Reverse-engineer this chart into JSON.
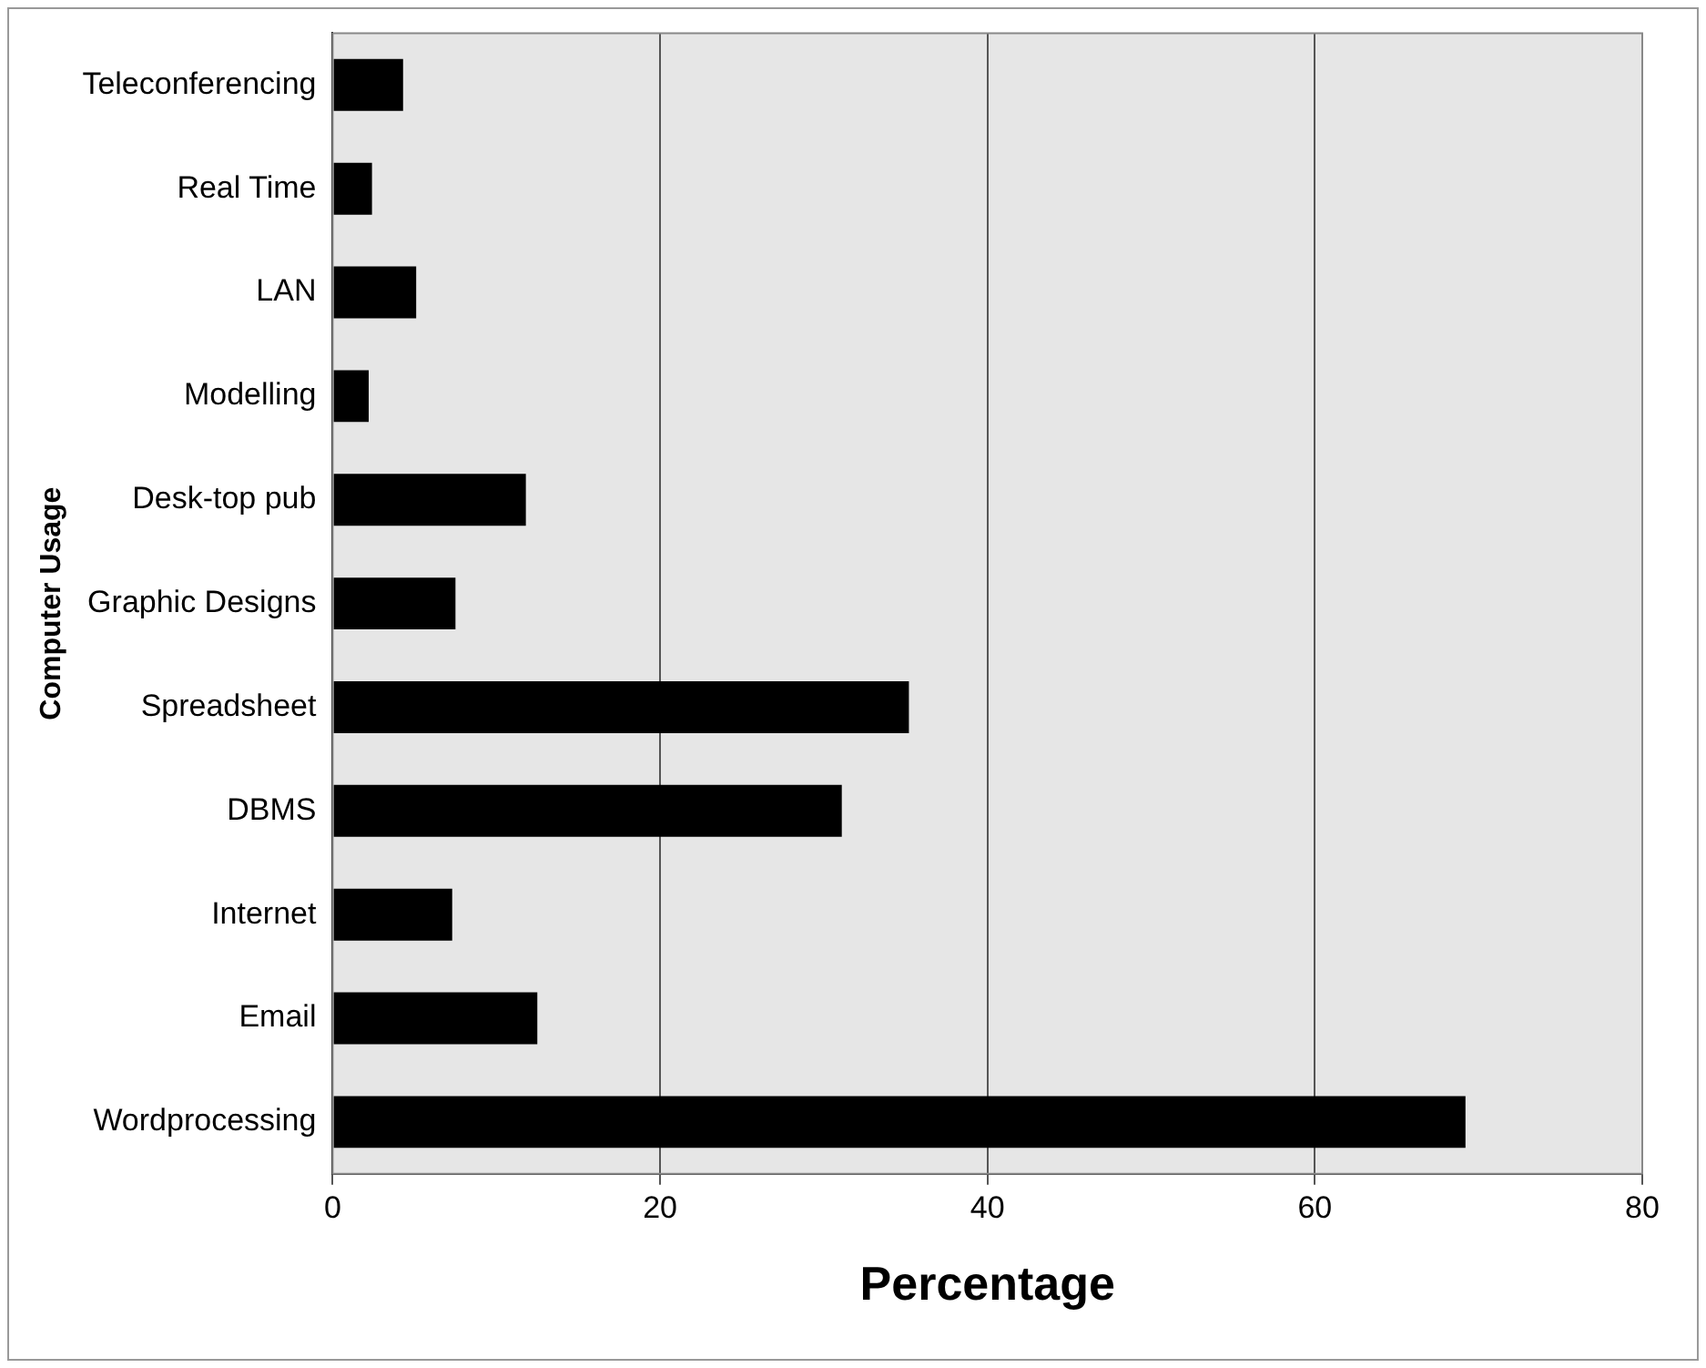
{
  "chart_data": {
    "type": "bar",
    "orientation": "horizontal",
    "xlabel": "Percentage",
    "ylabel": "Computer Usage",
    "categories": [
      "Teleconferencing",
      "Real Time",
      "LAN",
      "Modelling",
      "Desk-top pub",
      "Graphic Designs",
      "Spreadsheet",
      "DBMS",
      "Internet",
      "Email",
      "Wordprocessing"
    ],
    "values": [
      4.3,
      2.4,
      5.1,
      2.2,
      11.8,
      7.5,
      35.2,
      31.1,
      7.3,
      12.5,
      69.2
    ],
    "color": "#000000",
    "xlim": [
      0,
      80
    ],
    "xticks": [
      0,
      20,
      40,
      60,
      80
    ],
    "grid": "x",
    "legend": false
  }
}
